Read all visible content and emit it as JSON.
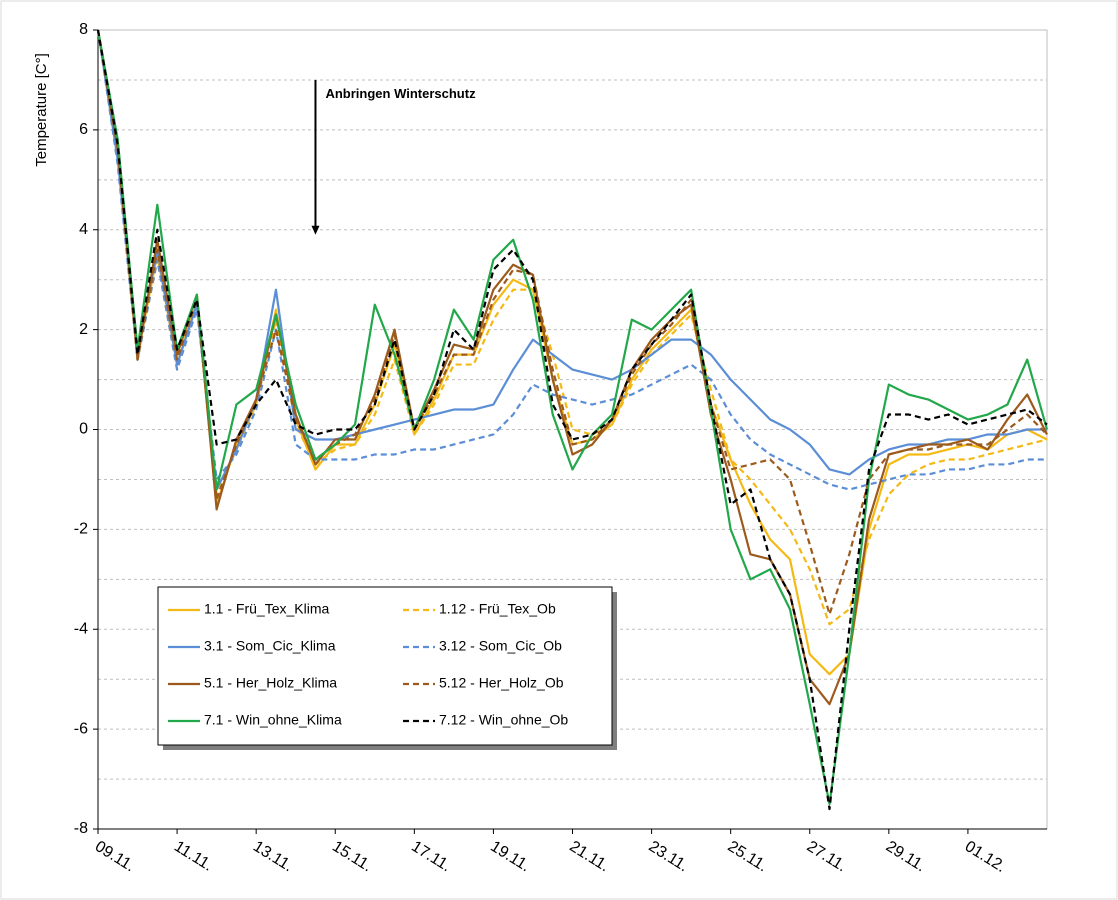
{
  "chart_data": {
    "type": "line",
    "y_label": "Temperature [C°]",
    "annotation": {
      "text": "Anbringen Winterschutz",
      "x": 5.5,
      "y_from": 7,
      "y_to": 3.9
    },
    "x": [
      0,
      0.5,
      1,
      1.5,
      2,
      2.5,
      3,
      3.5,
      4,
      4.5,
      5,
      5.5,
      6,
      6.5,
      7,
      7.5,
      8,
      8.5,
      9,
      9.5,
      10,
      10.5,
      11,
      11.5,
      12,
      12.5,
      13,
      13.5,
      14,
      14.5,
      15,
      15.5,
      16,
      16.5,
      17,
      17.5,
      18,
      18.5,
      19,
      19.5,
      20,
      20.5,
      21,
      21.5,
      22,
      22.5,
      23,
      23.5,
      24
    ],
    "xlim": [
      0,
      24
    ],
    "xticks": [
      {
        "value": 0,
        "label": "09.11."
      },
      {
        "value": 2,
        "label": "11.11."
      },
      {
        "value": 4,
        "label": "13.11."
      },
      {
        "value": 6,
        "label": "15.11."
      },
      {
        "value": 8,
        "label": "17.11."
      },
      {
        "value": 10,
        "label": "19.11."
      },
      {
        "value": 12,
        "label": "21.11."
      },
      {
        "value": 14,
        "label": "23.11."
      },
      {
        "value": 16,
        "label": "25.11."
      },
      {
        "value": 18,
        "label": "27.11."
      },
      {
        "value": 20,
        "label": "29.11."
      },
      {
        "value": 22,
        "label": "01.12."
      }
    ],
    "ylim": [
      -8,
      8
    ],
    "yticks": [
      -8,
      -6,
      -4,
      -2,
      0,
      2,
      4,
      6,
      8
    ],
    "minor_yticks": [
      -7,
      -5,
      -3,
      -1,
      1,
      3,
      5,
      7
    ],
    "grid": true,
    "series": [
      {
        "name": "1.1 - Frü_Tex_Klima",
        "color": "#f5b915",
        "dashed": false,
        "values": [
          8,
          5.5,
          1.5,
          3.5,
          1.3,
          2.6,
          -1.5,
          -0.3,
          0.5,
          2.4,
          0.2,
          -0.8,
          -0.3,
          -0.3,
          0.5,
          1.7,
          -0.1,
          0.6,
          1.5,
          1.5,
          2.5,
          3.0,
          2.8,
          1.0,
          -0.3,
          -0.2,
          0.1,
          1.0,
          1.6,
          2.0,
          2.4,
          0.5,
          -0.6,
          -1.5,
          -2.2,
          -2.6,
          -4.5,
          -4.9,
          -4.5,
          -2.0,
          -0.7,
          -0.5,
          -0.5,
          -0.4,
          -0.3,
          -0.4,
          -0.1,
          0.0,
          -0.2
        ]
      },
      {
        "name": "1.12 - Frü_Tex_Ob",
        "color": "#f5b915",
        "dashed": true,
        "values": [
          8,
          5.4,
          1.4,
          3.4,
          1.2,
          2.5,
          -1.3,
          -0.4,
          0.5,
          2.2,
          0.1,
          -0.7,
          -0.4,
          -0.3,
          0.3,
          1.4,
          -0.1,
          0.5,
          1.3,
          1.3,
          2.2,
          2.8,
          2.8,
          1.5,
          0.0,
          -0.1,
          0.1,
          0.9,
          1.5,
          1.9,
          2.3,
          0.8,
          -0.6,
          -1.0,
          -1.5,
          -2.0,
          -2.8,
          -3.9,
          -3.6,
          -2.2,
          -1.3,
          -0.9,
          -0.7,
          -0.6,
          -0.6,
          -0.5,
          -0.4,
          -0.3,
          -0.2
        ]
      },
      {
        "name": "3.1 - Som_Cic_Klima",
        "color": "#5b8ed6",
        "dashed": false,
        "values": [
          8,
          5.4,
          1.6,
          3.6,
          1.3,
          2.5,
          -1.2,
          -0.4,
          0.6,
          2.8,
          0.0,
          -0.2,
          -0.2,
          -0.1,
          0.0,
          0.1,
          0.2,
          0.3,
          0.4,
          0.4,
          0.5,
          1.2,
          1.8,
          1.5,
          1.2,
          1.1,
          1.0,
          1.2,
          1.5,
          1.8,
          1.8,
          1.5,
          1.0,
          0.6,
          0.2,
          0.0,
          -0.3,
          -0.8,
          -0.9,
          -0.6,
          -0.4,
          -0.3,
          -0.3,
          -0.2,
          -0.2,
          -0.1,
          -0.1,
          0.0,
          0.0
        ]
      },
      {
        "name": "3.12 - Som_Cic_Ob",
        "color": "#5b8ed6",
        "dashed": true,
        "values": [
          8,
          5.3,
          1.4,
          3.4,
          1.2,
          2.4,
          -1.0,
          -0.5,
          0.4,
          2.0,
          -0.3,
          -0.6,
          -0.6,
          -0.6,
          -0.5,
          -0.5,
          -0.4,
          -0.4,
          -0.3,
          -0.2,
          -0.1,
          0.3,
          0.9,
          0.7,
          0.6,
          0.5,
          0.6,
          0.7,
          0.9,
          1.1,
          1.3,
          1.0,
          0.3,
          -0.2,
          -0.5,
          -0.7,
          -0.9,
          -1.1,
          -1.2,
          -1.1,
          -1.0,
          -0.9,
          -0.9,
          -0.8,
          -0.8,
          -0.7,
          -0.7,
          -0.6,
          -0.6
        ]
      },
      {
        "name": "5.1 - Her_Holz_Klima",
        "color": "#9c5a1c",
        "dashed": false,
        "values": [
          8,
          5.6,
          1.4,
          3.8,
          1.5,
          2.7,
          -1.6,
          -0.2,
          0.6,
          2.3,
          0.3,
          -0.7,
          -0.2,
          -0.2,
          0.7,
          2.0,
          0.0,
          0.8,
          1.7,
          1.6,
          2.8,
          3.3,
          3.1,
          1.0,
          -0.5,
          -0.3,
          0.2,
          1.2,
          1.8,
          2.2,
          2.5,
          0.3,
          -1.0,
          -2.5,
          -2.6,
          -3.3,
          -5.0,
          -5.5,
          -4.5,
          -1.8,
          -0.5,
          -0.4,
          -0.3,
          -0.3,
          -0.2,
          -0.4,
          0.2,
          0.7,
          -0.1
        ]
      },
      {
        "name": "5.12 - Her_Holz_Ob",
        "color": "#9c5a1c",
        "dashed": true,
        "values": [
          8,
          5.6,
          1.4,
          3.6,
          1.4,
          2.6,
          -1.4,
          -0.3,
          0.6,
          2.0,
          0.2,
          -0.6,
          -0.3,
          -0.1,
          0.6,
          1.9,
          0.0,
          0.7,
          1.5,
          1.5,
          2.6,
          3.2,
          3.1,
          1.2,
          -0.3,
          -0.2,
          0.2,
          1.1,
          1.7,
          2.1,
          2.6,
          0.5,
          -0.8,
          -0.7,
          -0.6,
          -1.0,
          -2.3,
          -3.7,
          -2.5,
          -1.0,
          -0.5,
          -0.4,
          -0.4,
          -0.3,
          -0.3,
          -0.3,
          0.0,
          0.3,
          -0.1
        ]
      },
      {
        "name": "7.1 - Win_ohne_Klima",
        "color": "#22a84a",
        "dashed": false,
        "values": [
          8,
          5.8,
          1.6,
          4.5,
          1.6,
          2.7,
          -1.2,
          0.5,
          0.8,
          2.3,
          0.5,
          -0.6,
          -0.3,
          0.1,
          2.5,
          1.5,
          0.0,
          1.0,
          2.4,
          1.8,
          3.4,
          3.8,
          2.6,
          0.3,
          -0.8,
          -0.1,
          0.3,
          2.2,
          2.0,
          2.4,
          2.8,
          0.4,
          -2.0,
          -3.0,
          -2.8,
          -3.6,
          -5.5,
          -7.5,
          -4.5,
          -1.0,
          0.9,
          0.7,
          0.6,
          0.4,
          0.2,
          0.3,
          0.5,
          1.4,
          0.0
        ]
      },
      {
        "name": "7.12 - Win_ohne_Ob",
        "color": "#000000",
        "dashed": true,
        "values": [
          8,
          5.7,
          1.5,
          4.0,
          1.6,
          2.6,
          -0.3,
          -0.2,
          0.5,
          1.0,
          0.1,
          -0.1,
          0.0,
          0.0,
          0.5,
          1.8,
          0.0,
          0.7,
          2.0,
          1.6,
          3.2,
          3.6,
          3.0,
          0.5,
          -0.2,
          -0.1,
          0.2,
          1.2,
          1.7,
          2.2,
          2.7,
          0.5,
          -1.5,
          -1.2,
          -2.6,
          -3.3,
          -5.0,
          -7.6,
          -4.0,
          -0.8,
          0.3,
          0.3,
          0.2,
          0.3,
          0.1,
          0.2,
          0.3,
          0.4,
          0.1
        ]
      }
    ]
  }
}
